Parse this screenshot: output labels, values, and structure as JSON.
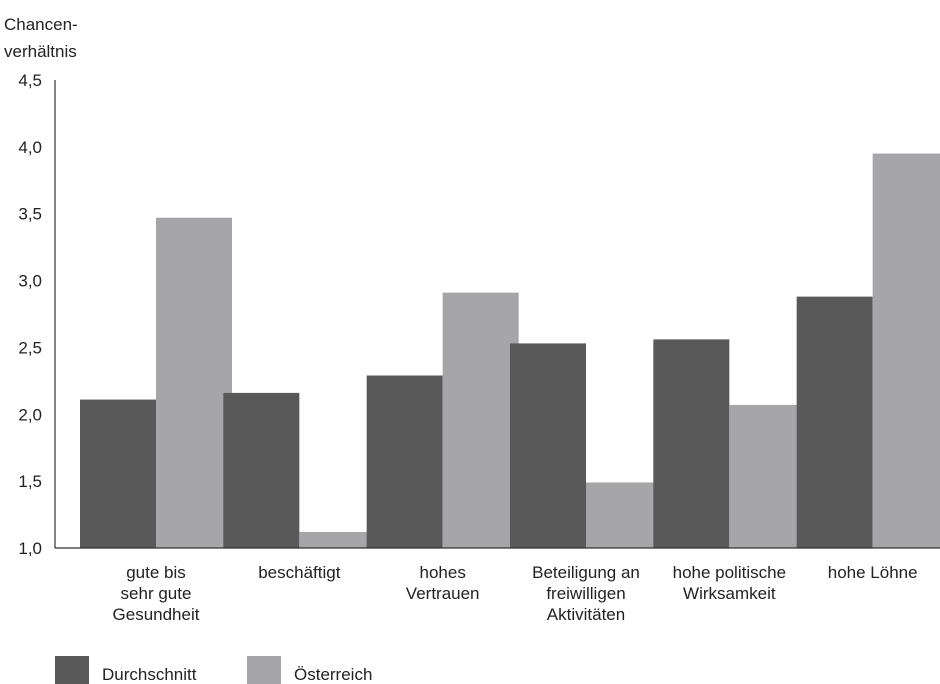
{
  "chart_data": {
    "type": "bar",
    "ylabel_lines": [
      "Chancen-",
      "verhältnis"
    ],
    "ylim": [
      1.0,
      4.5
    ],
    "yticks": [
      "1,0",
      "1,5",
      "2,0",
      "2,5",
      "3,0",
      "3,5",
      "4,0",
      "4,5"
    ],
    "ytick_values": [
      1.0,
      1.5,
      2.0,
      2.5,
      3.0,
      3.5,
      4.0,
      4.5
    ],
    "categories": [
      [
        "gute bis",
        "sehr gute",
        "Gesundheit"
      ],
      [
        "beschäftigt"
      ],
      [
        "hohes",
        "Vertrauen"
      ],
      [
        "Beteiligung an",
        "freiwilligen",
        "Aktivitäten"
      ],
      [
        "hohe politische",
        "Wirksamkeit"
      ],
      [
        "hohe Löhne"
      ]
    ],
    "series": [
      {
        "name": "Durchschnitt",
        "color": "#595959",
        "values": [
          2.11,
          2.16,
          2.29,
          2.53,
          2.56,
          2.88
        ]
      },
      {
        "name": "Österreich",
        "color": "#a6a6a8",
        "values": [
          3.47,
          1.12,
          2.91,
          1.49,
          2.07,
          3.95
        ]
      }
    ],
    "grid": false,
    "legend_position": "bottom-left"
  }
}
